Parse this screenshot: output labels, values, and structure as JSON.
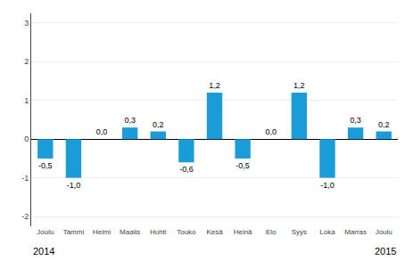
{
  "chart_data": {
    "type": "bar",
    "categories": [
      "Joulu",
      "Tammi",
      "Helmi",
      "Maalis",
      "Huhti",
      "Touko",
      "Kesä",
      "Heinä",
      "Elo",
      "Syys",
      "Loka",
      "Marras",
      "Joulu"
    ],
    "values": [
      -0.5,
      -1.0,
      0.0,
      0.3,
      0.2,
      -0.6,
      1.2,
      -0.5,
      0.0,
      1.2,
      -1.0,
      0.3,
      0.2
    ],
    "value_labels": [
      "-0,5",
      "-1,0",
      "0,0",
      "0,3",
      "0,2",
      "-0,6",
      "1,2",
      "-0,5",
      "0,0",
      "1,2",
      "-1,0",
      "0,3",
      "0,2"
    ],
    "data_labels": true,
    "color": "#1a9cd8",
    "ylim": [
      -2.25,
      3.25
    ],
    "yticks": [
      -2,
      -1,
      0,
      1,
      2,
      3
    ],
    "grid": true,
    "annotations": [
      "2014",
      "2015"
    ]
  }
}
